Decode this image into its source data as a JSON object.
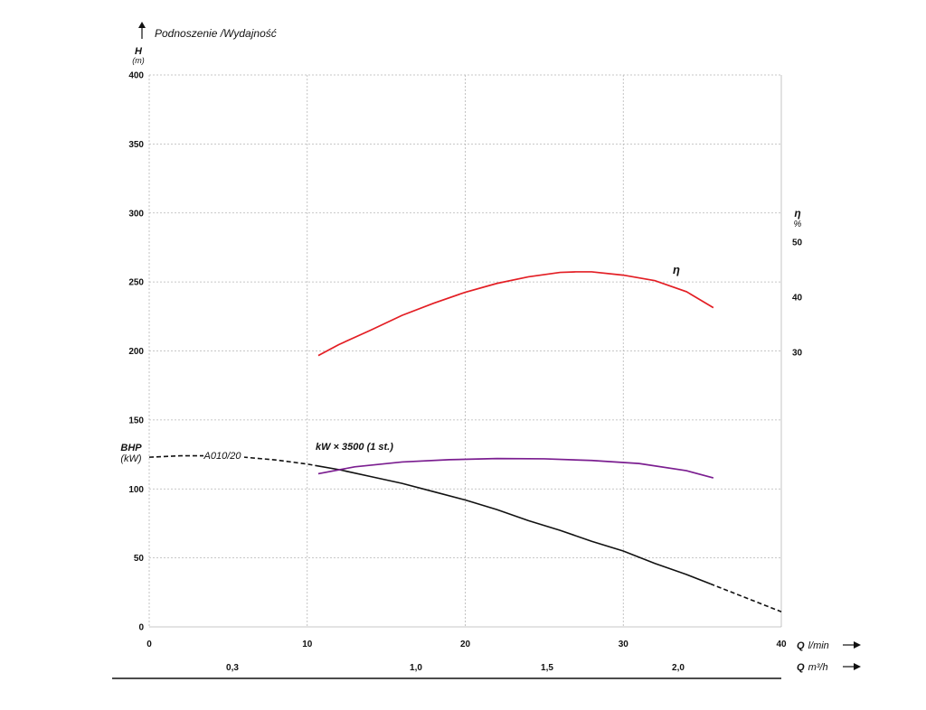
{
  "title": "Podnoszenie /Wydajność",
  "colors": {
    "head": "#111111",
    "efficiency": "#e31e24",
    "power": "#7b1e90",
    "grid": "#b5b5b5"
  },
  "chart_data": {
    "type": "line",
    "title": "Podnoszenie /Wydajność",
    "axes": {
      "x_flow_lmin": {
        "label": "Q",
        "unit": "l/min",
        "range": [
          0,
          40
        ],
        "ticks": [
          "0",
          "10",
          "20",
          "30",
          "40"
        ]
      },
      "x_flow_m3h": {
        "label": "Q",
        "unit": "m³/h",
        "ticks": [
          {
            "value": 0.3,
            "label": "0,3"
          },
          {
            "value": 1.0,
            "label": "1,0"
          },
          {
            "value": 1.5,
            "label": "1,5"
          },
          {
            "value": 2.0,
            "label": "2,0"
          }
        ]
      },
      "y_head": {
        "label": "H",
        "unit": "(m)",
        "range": [
          0,
          400
        ],
        "ticks": [
          "0",
          "50",
          "100",
          "150",
          "200",
          "250",
          "300",
          "350",
          "400"
        ]
      },
      "y_efficiency": {
        "label": "η",
        "unit": "%",
        "ticks": [
          "30",
          "40",
          "50"
        ]
      },
      "y_power": {
        "label": "BHP",
        "unit": "(kW)"
      }
    },
    "grid": true,
    "series": [
      {
        "name": "A010/20",
        "axis": "y_head",
        "color": "#111111",
        "dashed_ranges": [
          [
            0,
            10.5
          ],
          [
            35.5,
            40
          ]
        ],
        "x": [
          0,
          2,
          4,
          6,
          8,
          10,
          12,
          14,
          16,
          18,
          20,
          22,
          24,
          26,
          28,
          30,
          32,
          34,
          36,
          38,
          40
        ],
        "y": [
          123,
          124,
          124,
          123,
          121,
          118,
          114,
          109,
          104,
          98,
          92,
          85,
          77,
          70,
          62,
          55,
          46,
          38,
          29,
          20,
          11
        ]
      },
      {
        "name": "η",
        "axis": "y_efficiency",
        "color": "#e31e24",
        "x": [
          10.7,
          12,
          14,
          16,
          18,
          20,
          22,
          24,
          26,
          27,
          28,
          30,
          32,
          34,
          35.7
        ],
        "y": [
          29.4,
          31.4,
          34.0,
          36.7,
          38.9,
          40.9,
          42.5,
          43.7,
          44.5,
          44.6,
          44.6,
          44.0,
          43.0,
          41.0,
          38.1
        ]
      },
      {
        "name": "kW × 3500 (1 st.)",
        "axis": "y_power",
        "color": "#7b1e90",
        "x": [
          10.7,
          13,
          16,
          19,
          22,
          25,
          28,
          31,
          34,
          35.7
        ],
        "y": [
          111,
          116,
          119.5,
          121.2,
          122,
          121.8,
          120.6,
          118.4,
          113.2,
          108
        ]
      }
    ]
  }
}
